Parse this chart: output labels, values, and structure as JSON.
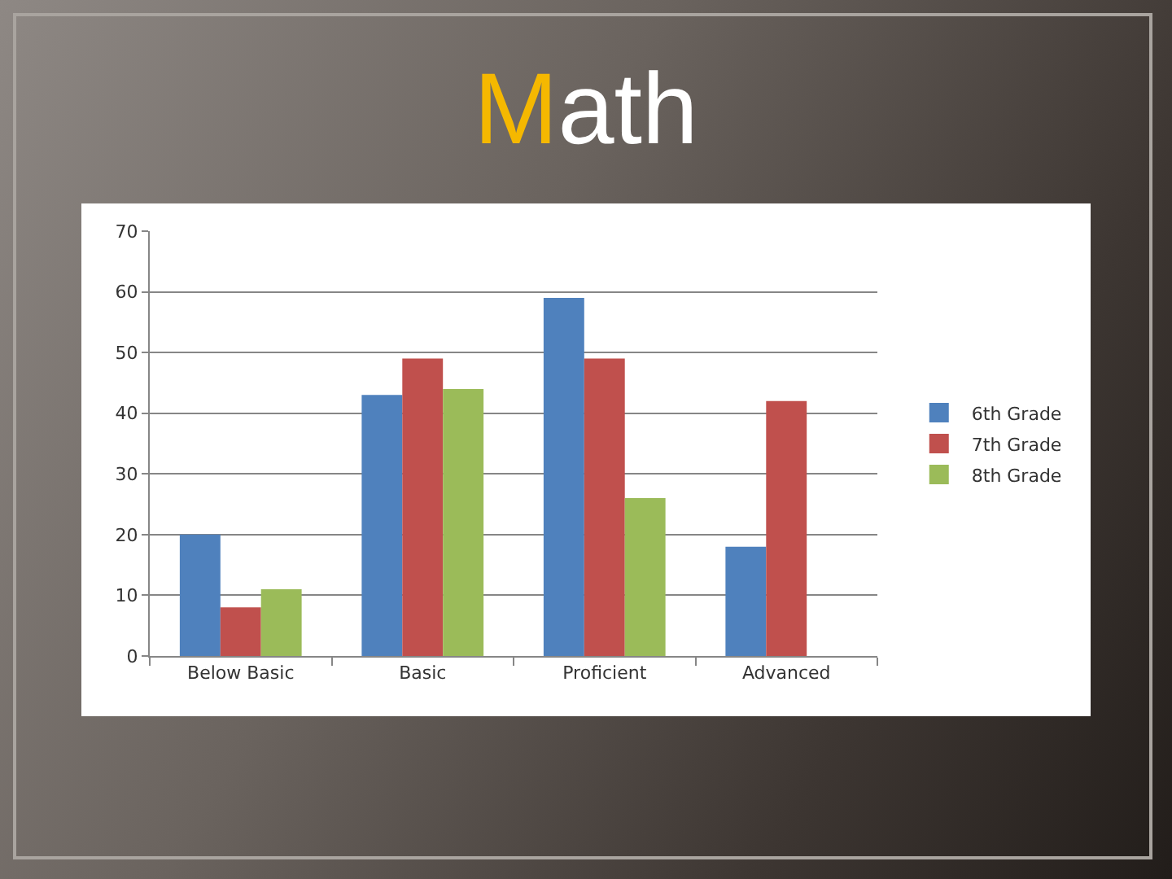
{
  "chart_data": {
    "type": "bar",
    "title": "Math",
    "categories": [
      "Below Basic",
      "Basic",
      "Proficient",
      "Advanced"
    ],
    "series": [
      {
        "name": "6th Grade",
        "color": "#4f81bd",
        "values": [
          20,
          43,
          59,
          18
        ]
      },
      {
        "name": "7th Grade",
        "color": "#c0504d",
        "values": [
          8,
          49,
          49,
          42
        ]
      },
      {
        "name": "8th Grade",
        "color": "#9bbb59",
        "values": [
          11,
          44,
          26,
          null
        ]
      }
    ],
    "ylim": [
      0,
      70
    ],
    "yticks": [
      0,
      10,
      20,
      30,
      40,
      50,
      60,
      70
    ],
    "grid": "y",
    "legend": "right"
  }
}
